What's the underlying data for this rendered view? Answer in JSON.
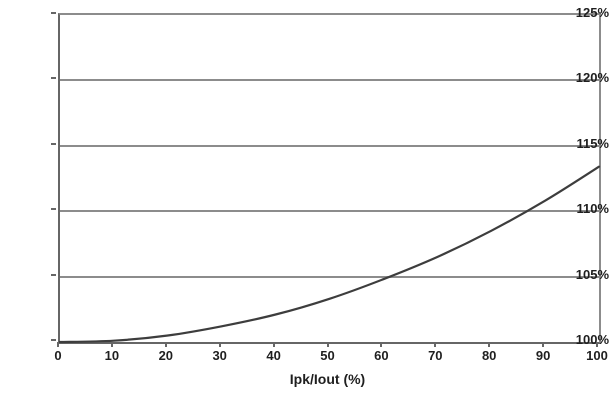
{
  "chart_data": {
    "type": "line",
    "title": "",
    "xlabel": "Ipk/Iout (%)",
    "ylabel": "",
    "x": [
      0,
      10,
      20,
      30,
      40,
      50,
      60,
      70,
      80,
      90,
      100
    ],
    "y": [
      100.0,
      100.1,
      100.5,
      101.2,
      102.1,
      103.3,
      104.8,
      106.5,
      108.5,
      110.8,
      113.4
    ],
    "xlim": [
      0,
      100
    ],
    "ylim": [
      100,
      125
    ],
    "x_ticks": [
      "0",
      "10",
      "20",
      "30",
      "40",
      "50",
      "60",
      "70",
      "80",
      "90",
      "100"
    ],
    "y_ticks": [
      "100%",
      "105%",
      "110%",
      "115%",
      "120%",
      "125%"
    ],
    "grid": "horizontal gridlines every 5%",
    "legend": "none",
    "colors": {
      "line": "#3d3d3d",
      "grid": "#8c8c8c",
      "axis": "#666666",
      "text": "#1f1f1f",
      "background": "#ffffff"
    }
  }
}
